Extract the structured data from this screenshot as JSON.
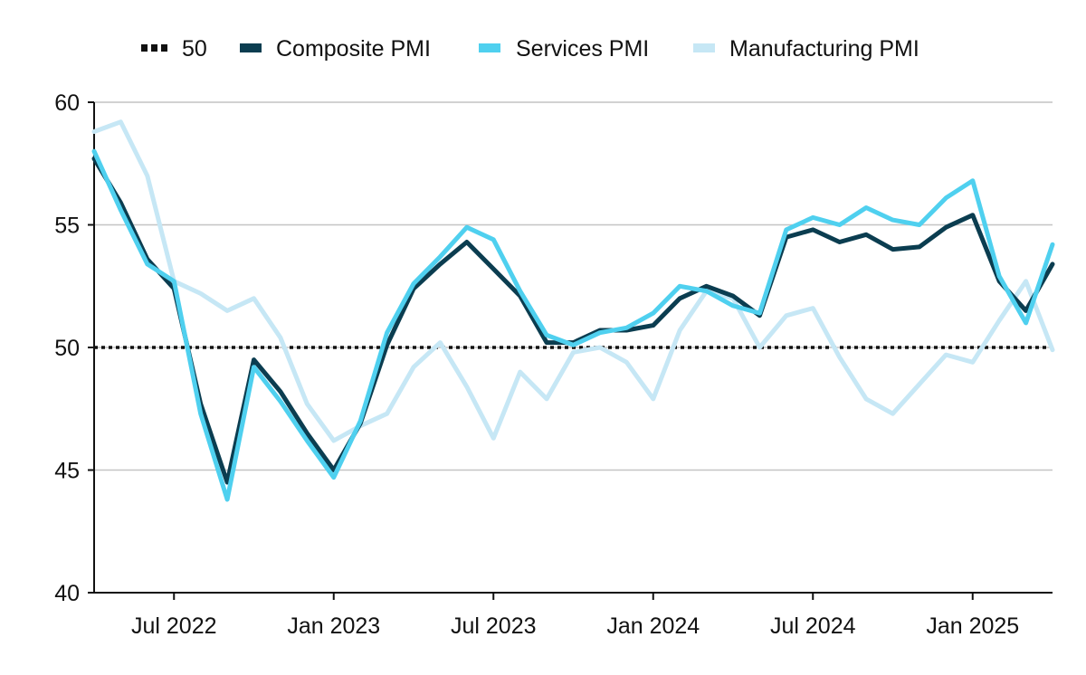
{
  "chart_data": {
    "type": "line",
    "title": "",
    "xlabel": "",
    "ylabel": "",
    "ylim": [
      40,
      60
    ],
    "yticks": [
      40,
      45,
      50,
      55,
      60
    ],
    "xlim": [
      "2022-04",
      "2025-04"
    ],
    "xticks": [
      {
        "date": "2022-07",
        "label": "Jul 2022"
      },
      {
        "date": "2023-01",
        "label": "Jan 2023"
      },
      {
        "date": "2023-07",
        "label": "Jul 2023"
      },
      {
        "date": "2024-01",
        "label": "Jan 2024"
      },
      {
        "date": "2024-07",
        "label": "Jul 2024"
      },
      {
        "date": "2025-01",
        "label": "Jan 2025"
      }
    ],
    "grid": true,
    "legend_position": "top",
    "x": [
      "2022-04",
      "2022-05",
      "2022-06",
      "2022-07",
      "2022-08",
      "2022-09",
      "2022-10",
      "2022-11",
      "2022-12",
      "2023-01",
      "2023-02",
      "2023-03",
      "2023-04",
      "2023-05",
      "2023-06",
      "2023-07",
      "2023-08",
      "2023-09",
      "2023-10",
      "2023-11",
      "2023-12",
      "2024-01",
      "2024-02",
      "2024-03",
      "2024-04",
      "2024-05",
      "2024-06",
      "2024-07",
      "2024-08",
      "2024-09",
      "2024-10",
      "2024-11",
      "2024-12",
      "2025-01",
      "2025-02",
      "2025-03",
      "2025-04"
    ],
    "series": [
      {
        "name": "50",
        "color": "#111111",
        "style": "dotted",
        "values": [
          50,
          50,
          50,
          50,
          50,
          50,
          50,
          50,
          50,
          50,
          50,
          50,
          50,
          50,
          50,
          50,
          50,
          50,
          50,
          50,
          50,
          50,
          50,
          50,
          50,
          50,
          50,
          50,
          50,
          50,
          50,
          50,
          50,
          50,
          50,
          50,
          50
        ]
      },
      {
        "name": "Composite PMI",
        "color": "#0b3d50",
        "style": "solid",
        "values": [
          57.7,
          55.9,
          53.6,
          52.4,
          47.7,
          44.5,
          49.5,
          48.2,
          46.5,
          45.0,
          46.9,
          50.1,
          52.4,
          53.4,
          54.3,
          53.2,
          52.1,
          50.2,
          50.2,
          50.7,
          50.7,
          50.9,
          52.0,
          52.5,
          52.1,
          51.3,
          54.5,
          54.8,
          54.3,
          54.6,
          54.0,
          54.1,
          54.9,
          55.4,
          52.7,
          51.5,
          53.4
        ]
      },
      {
        "name": "Services PMI",
        "color": "#4fd0ef",
        "style": "solid",
        "values": [
          58.0,
          55.6,
          53.4,
          52.7,
          47.3,
          43.8,
          49.2,
          47.8,
          46.2,
          44.7,
          47.0,
          50.6,
          52.6,
          53.7,
          54.9,
          54.4,
          52.3,
          50.5,
          50.1,
          50.6,
          50.8,
          51.4,
          52.5,
          52.3,
          51.7,
          51.4,
          54.8,
          55.3,
          55.0,
          55.7,
          55.2,
          55.0,
          56.1,
          56.8,
          52.9,
          51.0,
          54.2
        ]
      },
      {
        "name": "Manufacturing PMI",
        "color": "#c6e7f5",
        "style": "solid",
        "values": [
          58.8,
          59.2,
          57.0,
          52.7,
          52.2,
          51.5,
          52.0,
          50.4,
          47.7,
          46.2,
          46.8,
          47.3,
          49.2,
          50.2,
          48.4,
          46.3,
          49.0,
          47.9,
          49.8,
          50.0,
          49.4,
          47.9,
          50.7,
          52.3,
          52.0,
          50.0,
          51.3,
          51.6,
          49.6,
          47.9,
          47.3,
          48.5,
          49.7,
          49.4,
          51.1,
          52.7,
          49.9
        ]
      }
    ]
  }
}
